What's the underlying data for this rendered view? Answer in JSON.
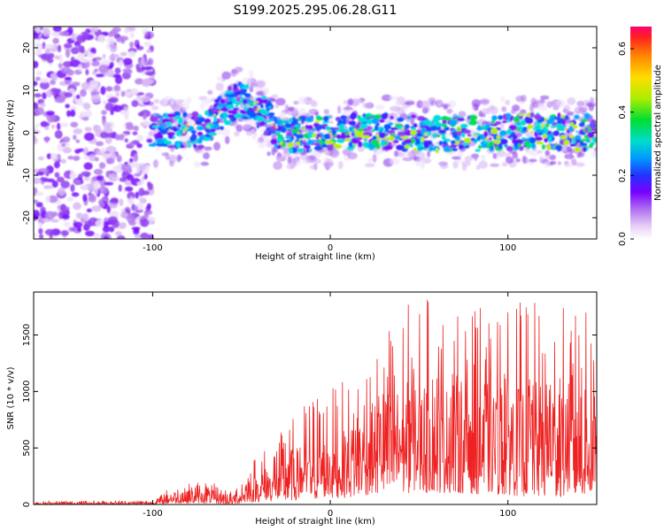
{
  "title": "S199.2025.295.06.28.G11",
  "chart_data": [
    {
      "type": "heatmap",
      "xlabel": "Height of straight line (km)",
      "ylabel": "Frequency (Hz)",
      "xlim": [
        -167,
        150
      ],
      "ylim": [
        -25,
        25
      ],
      "xticks": [
        -100,
        0,
        100
      ],
      "yticks": [
        -20,
        -10,
        0,
        10,
        20
      ],
      "colorbar": {
        "label": "Normalized spectral amplitude",
        "range": [
          0,
          0.67
        ],
        "ticks": [
          0.0,
          0.2,
          0.4,
          0.6
        ],
        "tick_labels": [
          "0.0",
          "0.2",
          "0.4",
          "0.6"
        ]
      },
      "features": [
        {
          "region": "x < -100",
          "description": "broadband noise across all frequencies"
        },
        {
          "region": "-100 to 150",
          "description": "signal band centered near 0 Hz, width about 10 Hz"
        },
        {
          "region": "-60 to -30",
          "description": "band shifted upward to about +8 Hz"
        }
      ]
    },
    {
      "type": "line",
      "xlabel": "Height of straight line (km)",
      "ylabel": "SNR (10 * v/v)",
      "xlim": [
        -167,
        150
      ],
      "ylim": [
        0,
        1880
      ],
      "xticks": [
        -100,
        0,
        100
      ],
      "yticks": [
        0,
        500,
        1000,
        1500
      ],
      "series_color": "#ee2222",
      "envelope": [
        {
          "x": -167,
          "low": 0,
          "high": 30
        },
        {
          "x": -100,
          "low": 0,
          "high": 40
        },
        {
          "x": -90,
          "low": 10,
          "high": 160
        },
        {
          "x": -70,
          "low": 10,
          "high": 220
        },
        {
          "x": -55,
          "low": 0,
          "high": 120
        },
        {
          "x": -45,
          "low": 20,
          "high": 400
        },
        {
          "x": -30,
          "low": 30,
          "high": 600
        },
        {
          "x": -10,
          "low": 40,
          "high": 1000
        },
        {
          "x": 10,
          "low": 60,
          "high": 1100
        },
        {
          "x": 30,
          "low": 100,
          "high": 1600
        },
        {
          "x": 50,
          "low": 100,
          "high": 1880
        },
        {
          "x": 70,
          "low": 100,
          "high": 1700
        },
        {
          "x": 100,
          "low": 80,
          "high": 1800
        },
        {
          "x": 120,
          "low": 60,
          "high": 1800
        },
        {
          "x": 150,
          "low": 80,
          "high": 1700
        }
      ]
    }
  ]
}
